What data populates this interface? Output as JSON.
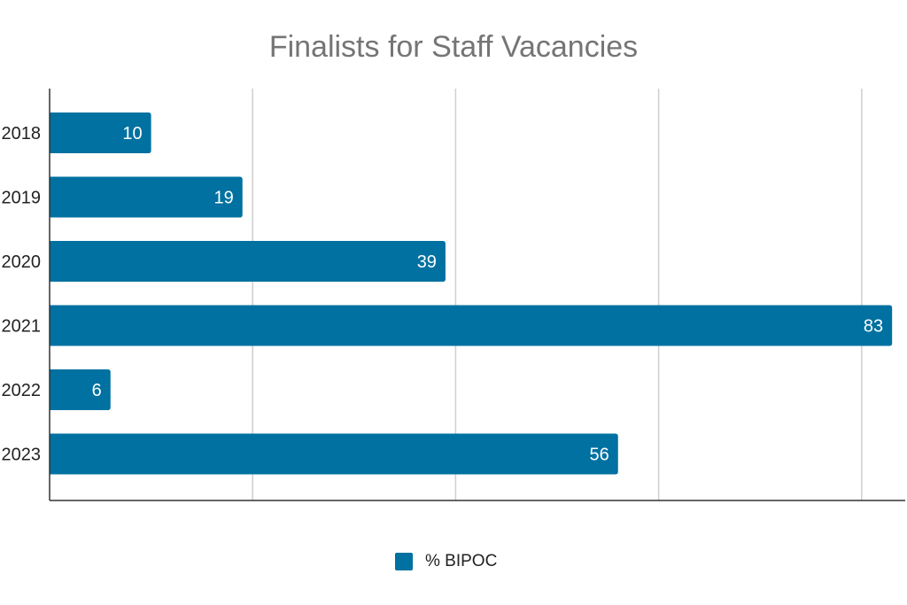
{
  "chart_data": {
    "type": "bar",
    "orientation": "horizontal",
    "title": "Finalists for Staff Vacancies",
    "categories": [
      "2018",
      "2019",
      "2020",
      "2021",
      "2022",
      "2023"
    ],
    "series": [
      {
        "name": "% BIPOC",
        "values": [
          10,
          19,
          39,
          83,
          6,
          56
        ],
        "color": "#0071a1"
      }
    ],
    "xlim": [
      0,
      80
    ],
    "grid": "vertical",
    "legend_position": "bottom",
    "data_labels": "inside-end"
  }
}
